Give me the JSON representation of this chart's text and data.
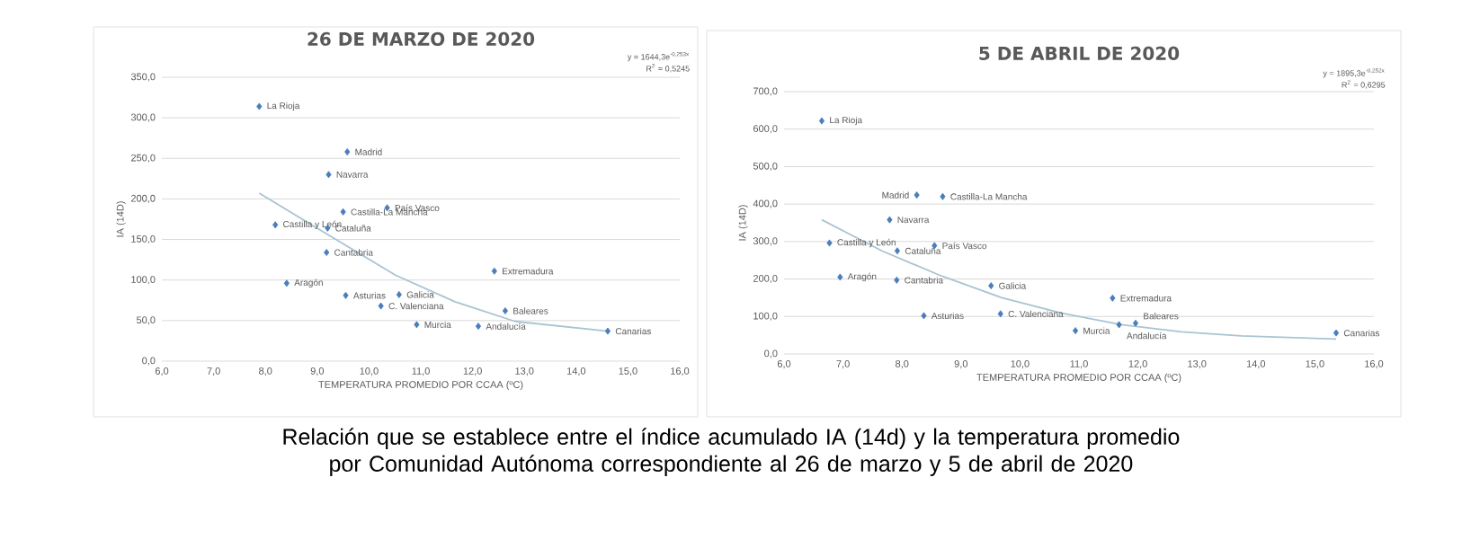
{
  "chart_data": [
    {
      "type": "scatter",
      "title": "26 DE MARZO DE 2020",
      "xlabel": "TEMPERATURA PROMEDIO POR CCAA (ºC)",
      "ylabel": "IA (14D)",
      "grid": "y",
      "marker": "diamond",
      "xlim": [
        6,
        16
      ],
      "xticks": [
        {
          "value": 6,
          "label": "6,0"
        },
        {
          "value": 7,
          "label": "7,0"
        },
        {
          "value": 8,
          "label": "8,0"
        },
        {
          "value": 9,
          "label": "9,0"
        },
        {
          "value": 10,
          "label": "10,0"
        },
        {
          "value": 11,
          "label": "11,0"
        },
        {
          "value": 12,
          "label": "12,0"
        },
        {
          "value": 13,
          "label": "13,0"
        },
        {
          "value": 14,
          "label": "14,0"
        },
        {
          "value": 15,
          "label": "15,0"
        },
        {
          "value": 16,
          "label": "16,0"
        }
      ],
      "ylim": [
        0,
        350
      ],
      "yticks": [
        {
          "value": 0,
          "label": "0,0"
        },
        {
          "value": 50,
          "label": "50,0"
        },
        {
          "value": 100,
          "label": "100,0"
        },
        {
          "value": 150,
          "label": "150,0"
        },
        {
          "value": 200,
          "label": "200,0"
        },
        {
          "value": 250,
          "label": "250,0"
        },
        {
          "value": 300,
          "label": "300,0"
        },
        {
          "value": 350,
          "label": "350,0"
        }
      ],
      "series": [
        {
          "type": "scatter",
          "color": "#4a7ebb",
          "x": [
            7.88,
            9.58,
            9.22,
            10.35,
            9.5,
            8.19,
            9.2,
            9.18,
            12.42,
            8.41,
            9.55,
            10.58,
            10.23,
            12.63,
            10.92,
            12.11,
            14.61
          ],
          "values": [
            314,
            258,
            230,
            189,
            184,
            168,
            164,
            134,
            111,
            96,
            81,
            82,
            68,
            62,
            45,
            43,
            37
          ]
        },
        {
          "type": "line",
          "marker": "none",
          "color": "#a9c4d2",
          "x": [
            7.88,
            9.36,
            10.51,
            11.67,
            12.82,
            14.61
          ],
          "values": [
            207,
            150,
            106,
            73,
            49,
            37
          ]
        }
      ],
      "annotations": [
        "y = 1644,3e$^{-0,253x}$",
        "R$^{2}$ = 0,5245",
        {
          "text": "La Rioja",
          "x": 7.88,
          "y": 314
        },
        {
          "text": "Madrid",
          "x": 9.58,
          "y": 258
        },
        {
          "text": "Navarra",
          "x": 9.22,
          "y": 230
        },
        {
          "text": "País Vasco",
          "x": 10.35,
          "y": 189
        },
        {
          "text": "Castilla-La Mancha",
          "x": 9.5,
          "y": 184
        },
        {
          "text": "Castilla y León",
          "x": 8.19,
          "y": 168
        },
        {
          "text": "Cataluña",
          "x": 9.2,
          "y": 164
        },
        {
          "text": "Cantabria",
          "x": 9.18,
          "y": 134
        },
        {
          "text": "Extremadura",
          "x": 12.42,
          "y": 111
        },
        {
          "text": "Aragón",
          "x": 8.41,
          "y": 96
        },
        {
          "text": "Asturias",
          "x": 9.55,
          "y": 81
        },
        {
          "text": "Galicia",
          "x": 10.58,
          "y": 82
        },
        {
          "text": "C. Valenciana",
          "x": 10.23,
          "y": 68
        },
        {
          "text": "Baleares",
          "x": 12.63,
          "y": 62
        },
        {
          "text": "Murcia",
          "x": 10.92,
          "y": 45
        },
        {
          "text": "Andalucía",
          "x": 12.11,
          "y": 43
        },
        {
          "text": "Canarias",
          "x": 14.61,
          "y": 37
        }
      ]
    },
    {
      "type": "scatter",
      "title": "5 DE ABRIL DE 2020",
      "xlabel": "TEMPERATURA PROMEDIO POR CCAA (ºC)",
      "ylabel": "IA (14D)",
      "grid": "y",
      "marker": "diamond",
      "xlim": [
        6,
        16
      ],
      "xticks": [
        {
          "value": 6,
          "label": "6,0"
        },
        {
          "value": 7,
          "label": "7,0"
        },
        {
          "value": 8,
          "label": "8,0"
        },
        {
          "value": 9,
          "label": "9,0"
        },
        {
          "value": 10,
          "label": "10,0"
        },
        {
          "value": 11,
          "label": "11,0"
        },
        {
          "value": 12,
          "label": "12,0"
        },
        {
          "value": 13,
          "label": "13,0"
        },
        {
          "value": 14,
          "label": "14,0"
        },
        {
          "value": 15,
          "label": "15,0"
        },
        {
          "value": 16,
          "label": "16,0"
        }
      ],
      "ylim": [
        0,
        700
      ],
      "yticks": [
        {
          "value": 0,
          "label": "0,0"
        },
        {
          "value": 100,
          "label": "100,0"
        },
        {
          "value": 200,
          "label": "200,0"
        },
        {
          "value": 300,
          "label": "300,0"
        },
        {
          "value": 400,
          "label": "400,0"
        },
        {
          "value": 500,
          "label": "500,0"
        },
        {
          "value": 600,
          "label": "600,0"
        },
        {
          "value": 700,
          "label": "700,0"
        }
      ],
      "series": [
        {
          "type": "scatter",
          "color": "#4a7ebb",
          "x": [
            6.64,
            8.25,
            8.69,
            7.79,
            6.77,
            8.55,
            7.92,
            6.95,
            7.91,
            9.51,
            11.57,
            8.37,
            9.67,
            10.94,
            11.68,
            11.96,
            15.36
          ],
          "values": [
            622,
            424,
            420,
            358,
            296,
            289,
            275,
            205,
            197,
            182,
            149,
            102,
            107,
            62,
            78,
            82,
            56
          ]
        },
        {
          "type": "line",
          "marker": "none",
          "color": "#a9c4d2",
          "x": [
            6.64,
            7.66,
            8.67,
            9.69,
            10.71,
            11.72,
            12.74,
            13.75,
            15.36
          ],
          "values": [
            358,
            275,
            208,
            150,
            109,
            78,
            59,
            48,
            40
          ]
        }
      ],
      "annotations": [
        "y = 1895,3e$^{-0,252x}$",
        "R$^{2}$ = 0,6295",
        "Relación que se establece entre el índice acumulado IA (14d)  y la temperatura promedio por Comunidad Autónoma correspondiente al 26 de marzo y 5 de abril de 2020",
        {
          "text": "La Rioja",
          "x": 6.64,
          "y": 622
        },
        {
          "text": "Madrid",
          "x": 8.25,
          "y": 424
        },
        {
          "text": "Castilla-La Mancha",
          "x": 8.69,
          "y": 420
        },
        {
          "text": "Navarra",
          "x": 7.79,
          "y": 358
        },
        {
          "text": "Castilla y León",
          "x": 6.77,
          "y": 296
        },
        {
          "text": "País Vasco",
          "x": 8.55,
          "y": 289
        },
        {
          "text": "Cataluña",
          "x": 7.92,
          "y": 275
        },
        {
          "text": "Aragón",
          "x": 6.95,
          "y": 205
        },
        {
          "text": "Cantabria",
          "x": 7.91,
          "y": 197
        },
        {
          "text": "Galicia",
          "x": 9.51,
          "y": 182
        },
        {
          "text": "Extremadura",
          "x": 11.57,
          "y": 149
        },
        {
          "text": "Asturias",
          "x": 8.37,
          "y": 102
        },
        {
          "text": "C. Valenciana",
          "x": 9.67,
          "y": 107
        },
        {
          "text": "Murcia",
          "x": 10.94,
          "y": 62
        },
        {
          "text": "Andalucía",
          "x": 11.68,
          "y": 78
        },
        {
          "text": "Baleares",
          "x": 11.96,
          "y": 82
        },
        {
          "text": "Canarias",
          "x": 15.36,
          "y": 56
        }
      ]
    }
  ]
}
